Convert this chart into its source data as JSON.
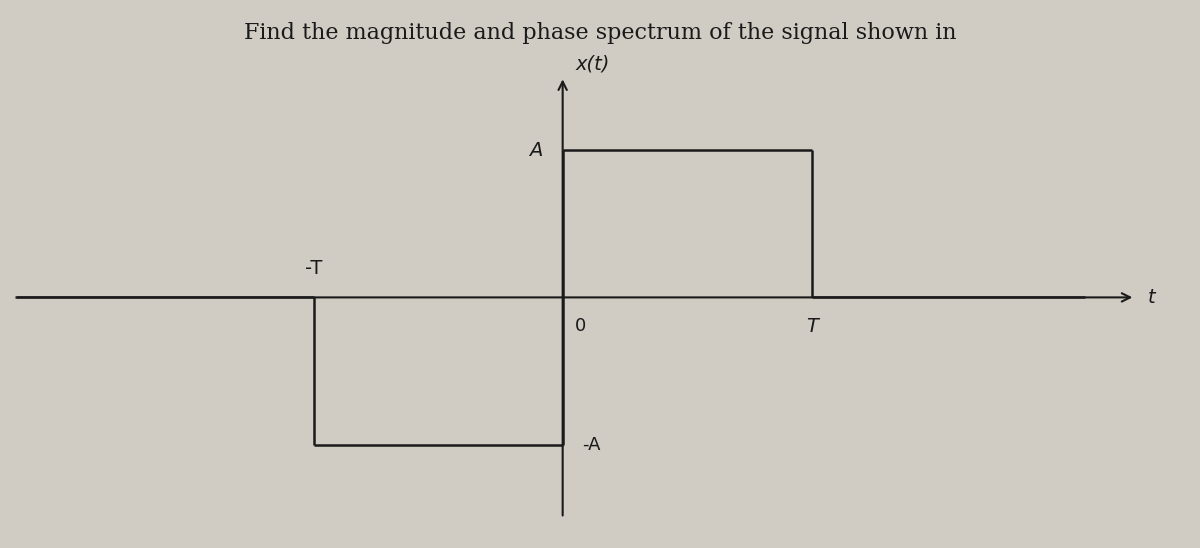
{
  "title_text": "Find the magnitude and phase spectrum of the signal shown in",
  "title_fontsize": 16,
  "title_color": "#1a1a1a",
  "background_color": "#d0ccc4",
  "plot_bg_color": "#d0ccc4",
  "signal_color": "#1a1a1a",
  "signal_linewidth": 1.8,
  "axis_color": "#1a1a1a",
  "axis_linewidth": 1.5,
  "ylabel": "x(t)",
  "xlabel": "t",
  "A_label": "A",
  "negA_label": "-A",
  "T_label": "T",
  "negT_label": "-T",
  "zero_label": "0",
  "A_value": 1.0,
  "T_value": 1.0,
  "xlim": [
    -2.2,
    2.5
  ],
  "ylim": [
    -1.6,
    1.6
  ],
  "figsize": [
    12,
    5.48
  ],
  "dpi": 100
}
